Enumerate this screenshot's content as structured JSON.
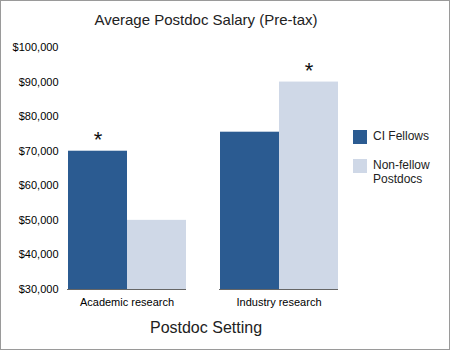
{
  "chart_data": {
    "type": "bar",
    "title": "Average Postdoc Salary (Pre-tax)",
    "xlabel": "Postdoc Setting",
    "categories": [
      "Academic research",
      "Industry research"
    ],
    "series": [
      {
        "name": "CI Fellows",
        "color": "#2b5b91",
        "values": [
          70000,
          75500
        ]
      },
      {
        "name": "Non-fellow Postdocs",
        "color": "#cfd8e7",
        "values": [
          50000,
          90000
        ]
      }
    ],
    "ylim": [
      30000,
      100000
    ],
    "yticks": [
      {
        "value": 30000,
        "label": "$30,000"
      },
      {
        "value": 40000,
        "label": "$40,000"
      },
      {
        "value": 50000,
        "label": "$50,000"
      },
      {
        "value": 60000,
        "label": "$60,000"
      },
      {
        "value": 70000,
        "label": "$70,000"
      },
      {
        "value": 80000,
        "label": "$80,000"
      },
      {
        "value": 90000,
        "label": "$90,000"
      },
      {
        "value": 100000,
        "label": "$100,000"
      }
    ],
    "annotations": [
      {
        "text": "*",
        "category": "Academic research",
        "series": "CI Fellows"
      },
      {
        "text": "*",
        "category": "Industry research",
        "series": "Non-fellow Postdocs"
      }
    ],
    "grid": false,
    "legend": "right"
  }
}
